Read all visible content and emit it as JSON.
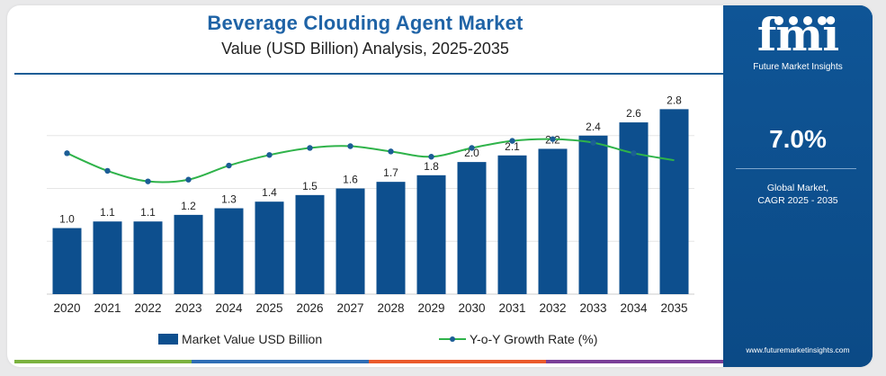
{
  "title": "Beverage Clouding Agent Market",
  "subtitle": "Value (USD Billion) Analysis, 2025-2035",
  "chart_data": {
    "type": "bar",
    "categories": [
      "2020",
      "2021",
      "2022",
      "2023",
      "2024",
      "2025",
      "2026",
      "2027",
      "2028",
      "2029",
      "2030",
      "2031",
      "2032",
      "2033",
      "2034",
      "2035"
    ],
    "series": [
      {
        "name": "Market Value USD Billion",
        "type": "bar",
        "values": [
          1.0,
          1.1,
          1.1,
          1.2,
          1.3,
          1.4,
          1.5,
          1.6,
          1.7,
          1.8,
          2.0,
          2.1,
          2.2,
          2.4,
          2.6,
          2.8
        ]
      },
      {
        "name": "Y-o-Y Growth Rate (%)",
        "type": "line",
        "values": [
          8.0,
          7.0,
          6.4,
          6.5,
          7.3,
          7.9,
          8.3,
          8.4,
          8.1,
          7.8,
          8.3,
          8.7,
          8.8,
          8.6,
          8.0,
          7.6
        ]
      }
    ],
    "bar_labels": [
      "1.0",
      "1.1",
      "1.1",
      "1.2",
      "1.3",
      "1.4",
      "1.5",
      "1.6",
      "1.7",
      "1.8",
      "2.0",
      "2.1",
      "2.2",
      "2.4",
      "2.6",
      "2.8"
    ],
    "ylim": [
      0,
      3.2
    ],
    "growth_ylim": [
      0,
      12
    ],
    "grid": true,
    "legend_position": "bottom",
    "colors": {
      "bar": "#0d4f8e",
      "line": "#2fb34a",
      "marker": "#1c5d96"
    }
  },
  "legend": {
    "bar_label": "Market Value USD Billion",
    "line_label": "Y-o-Y Growth Rate (%)"
  },
  "sidebar": {
    "logo_text": "fmi",
    "logo_subtitle": "Future Market Insights",
    "cagr_value": "7.0%",
    "cagr_label_line1": "Global Market,",
    "cagr_label_line2": "CAGR 2025 - 2035",
    "website": "www.futuremarketinsights.com"
  },
  "strip_colors": [
    "#7bb23f",
    "#2f6db5",
    "#ea5a2b",
    "#7a3f98"
  ]
}
